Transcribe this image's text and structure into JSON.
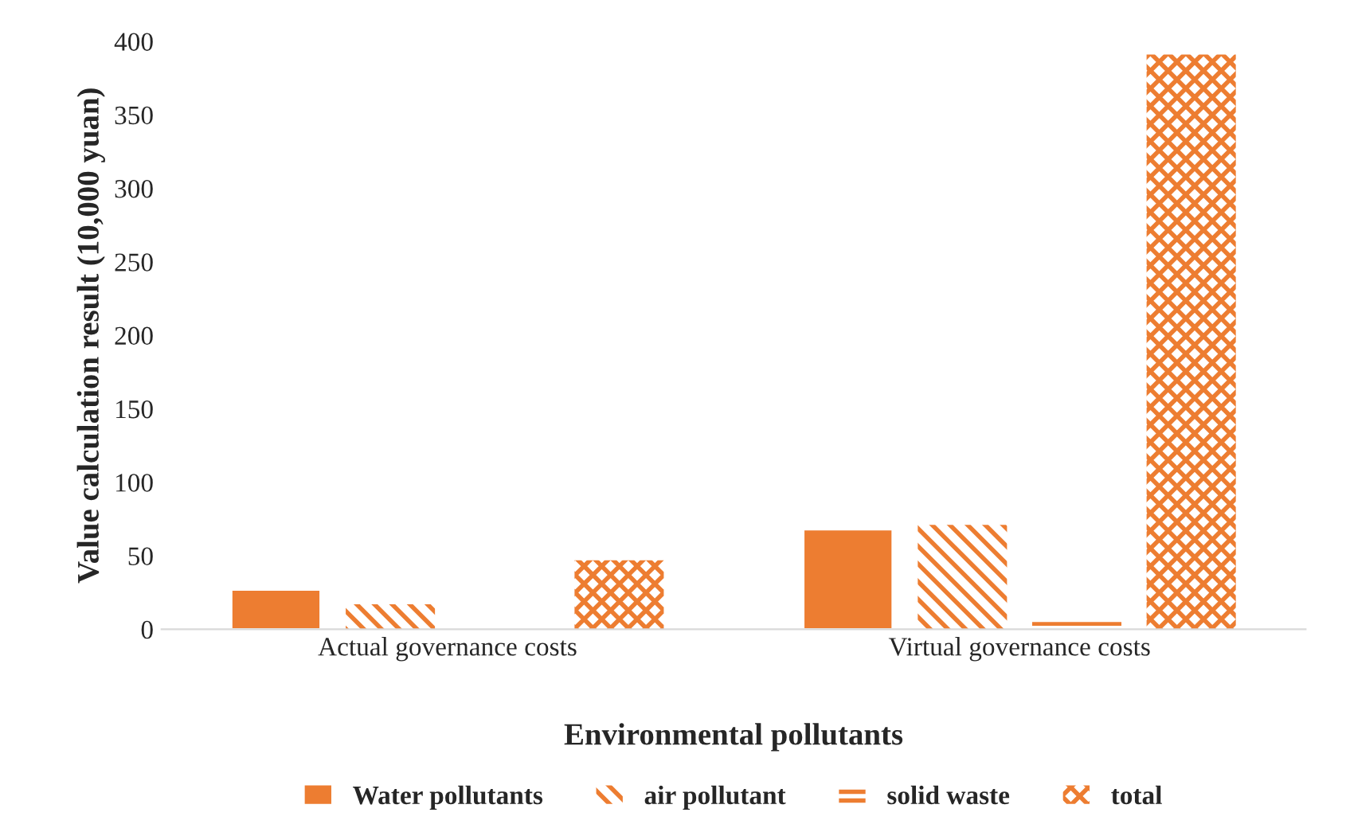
{
  "chart_data": {
    "type": "bar",
    "xlabel": "Environmental pollutants",
    "ylabel": "Value calculation result (10,000 yuan)",
    "categories": [
      "Actual governance costs",
      "Virtual governance costs"
    ],
    "series": [
      {
        "name": "Water pollutants",
        "color": "#ed7d31",
        "values": [
          27,
          68
        ]
      },
      {
        "name": "air pollutant",
        "color": "#ed7d31",
        "values": [
          17,
          71
        ]
      },
      {
        "name": "solid waste",
        "color": "#ed7d31",
        "values": [
          0,
          5
        ]
      },
      {
        "name": "total",
        "color": "#ed7d31",
        "values": [
          47,
          391
        ]
      }
    ],
    "ylim": [
      0,
      400
    ],
    "yticks": [
      0,
      50,
      100,
      150,
      200,
      250,
      300,
      350,
      400
    ],
    "grid": false,
    "legend": "bottom"
  }
}
